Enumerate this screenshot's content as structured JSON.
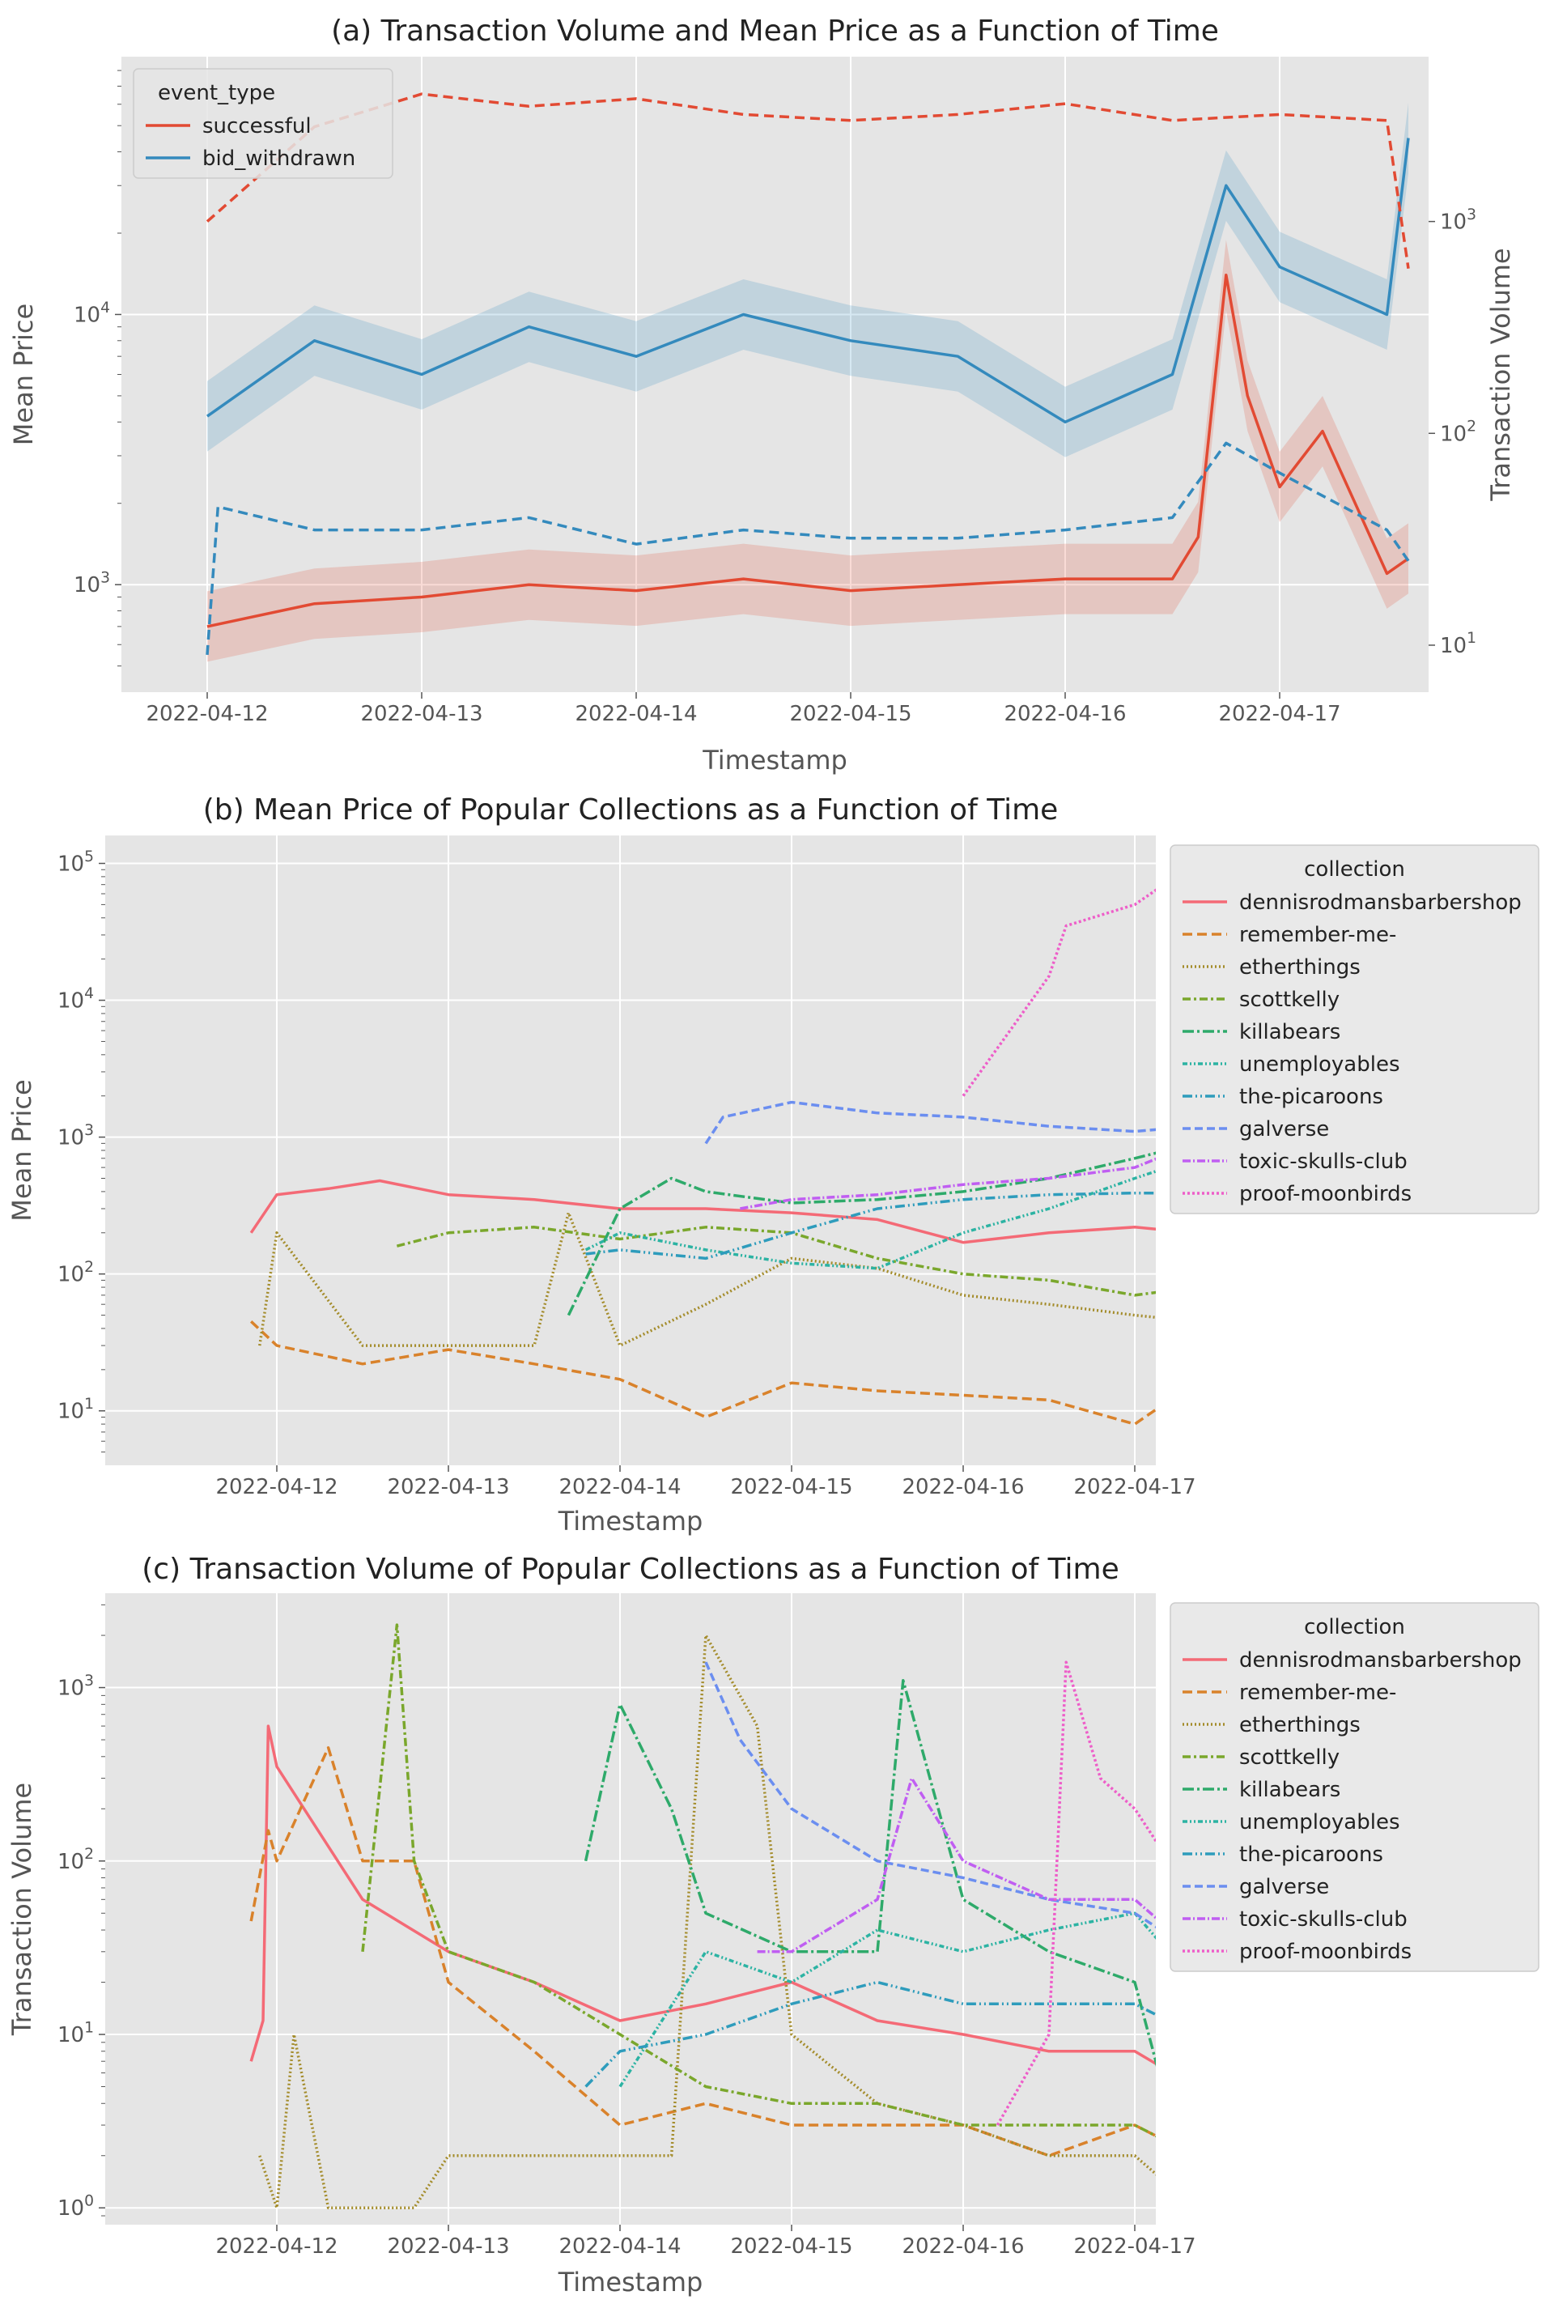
{
  "chart_data": [
    {
      "type": "line",
      "title": "(a) Transaction Volume and Mean Price as a Function of Time",
      "xlabel": "Timestamp",
      "ylabel": "Mean Price",
      "ylabel_right": "Transaction Volume",
      "yscale": "log",
      "ylim": [
        400,
        90000
      ],
      "ylim_right": [
        6,
        6000
      ],
      "y_ticks": [
        "10^3",
        "10^4"
      ],
      "y_right_ticks": [
        "10^1",
        "10^2",
        "10^3"
      ],
      "x_ticks": [
        "2022-04-12",
        "2022-04-13",
        "2022-04-14",
        "2022-04-15",
        "2022-04-16",
        "2022-04-17"
      ],
      "grid": true,
      "legend": {
        "title": "event_type",
        "placement": "upper-left",
        "entries": [
          "successful",
          "bid_withdrawn"
        ]
      },
      "note": "solid lines = Mean Price (left axis) with shaded interval; dashed lines = Transaction Volume (right axis)",
      "series": [
        {
          "name": "successful",
          "color": "#e24a33",
          "axis": "left",
          "style": "solid",
          "x": [
            0,
            0.5,
            1,
            1.5,
            2,
            2.5,
            3,
            3.5,
            4,
            4.5,
            4.62,
            4.75,
            4.85,
            5,
            5.2,
            5.5,
            5.6
          ],
          "y": [
            700,
            850,
            900,
            1000,
            950,
            1050,
            950,
            1000,
            1050,
            1050,
            1500,
            14000,
            5000,
            2300,
            3700,
            1100,
            1250
          ]
        },
        {
          "name": "bid_withdrawn",
          "color": "#348abd",
          "axis": "left",
          "style": "solid",
          "x": [
            0,
            0.5,
            1,
            1.5,
            2,
            2.5,
            3,
            3.5,
            4,
            4.5,
            4.75,
            5,
            5.5,
            5.6
          ],
          "y": [
            4200,
            8000,
            6000,
            9000,
            7000,
            10000,
            8000,
            7000,
            4000,
            6000,
            30000,
            15000,
            10000,
            45000
          ]
        },
        {
          "name": "successful",
          "color": "#e24a33",
          "axis": "right",
          "style": "dashed",
          "x": [
            0,
            0.5,
            1,
            1.5,
            2,
            2.5,
            3,
            3.5,
            4,
            4.5,
            5,
            5.5,
            5.6
          ],
          "y": [
            1000,
            2800,
            4000,
            3500,
            3800,
            3200,
            3000,
            3200,
            3600,
            3000,
            3200,
            3000,
            600
          ]
        },
        {
          "name": "bid_withdrawn",
          "color": "#348abd",
          "axis": "right",
          "style": "dashed",
          "x": [
            0,
            0.05,
            0.5,
            1,
            1.5,
            2,
            2.5,
            3,
            3.5,
            4,
            4.5,
            4.75,
            5,
            5.5,
            5.6
          ],
          "y": [
            9,
            45,
            35,
            35,
            40,
            30,
            35,
            32,
            32,
            35,
            40,
            90,
            65,
            35,
            25
          ]
        }
      ]
    },
    {
      "type": "line",
      "title": "(b) Mean Price of Popular Collections as a Function of Time",
      "xlabel": "Timestamp",
      "ylabel": "Mean Price",
      "yscale": "log",
      "ylim": [
        4,
        160000
      ],
      "y_ticks": [
        "10^1",
        "10^2",
        "10^3",
        "10^4",
        "10^5"
      ],
      "x_ticks": [
        "2022-04-12",
        "2022-04-13",
        "2022-04-14",
        "2022-04-15",
        "2022-04-16",
        "2022-04-17"
      ],
      "grid": true,
      "legend": {
        "title": "collection",
        "placement": "outside-right",
        "entries": [
          "dennisrodmansbarbershop",
          "remember-me-",
          "etherthings",
          "scottkelly",
          "killabears",
          "unemployables",
          "the-picaroons",
          "galverse",
          "toxic-skulls-club",
          "proof-moonbirds"
        ]
      },
      "series": [
        {
          "name": "dennisrodmansbarbershop",
          "color": "#f46a76",
          "dash": "",
          "x": [
            -0.15,
            0,
            0.3,
            0.6,
            1,
            1.5,
            2,
            2.5,
            3,
            3.5,
            4,
            4.5,
            5,
            5.35
          ],
          "y": [
            200,
            380,
            420,
            480,
            380,
            350,
            300,
            300,
            280,
            250,
            170,
            200,
            220,
            200
          ]
        },
        {
          "name": "remember-me-",
          "color": "#d9822b",
          "dash": "12,6",
          "x": [
            -0.15,
            0,
            0.5,
            1,
            1.5,
            2,
            2.5,
            3,
            3.5,
            4,
            4.5,
            5,
            5.35
          ],
          "y": [
            45,
            30,
            22,
            28,
            22,
            17,
            9,
            16,
            14,
            13,
            12,
            8,
            16
          ]
        },
        {
          "name": "etherthings",
          "color": "#a48c2b",
          "dash": "2,3",
          "x": [
            -0.1,
            0,
            0.5,
            1,
            1.5,
            1.7,
            2,
            2.5,
            3,
            3.5,
            4,
            4.5,
            5,
            5.35
          ],
          "y": [
            30,
            200,
            30,
            30,
            30,
            280,
            30,
            60,
            130,
            110,
            70,
            60,
            50,
            45
          ]
        },
        {
          "name": "scottkelly",
          "color": "#7aa72c",
          "dash": "10,4,3,4",
          "x": [
            0.7,
            1,
            1.5,
            2,
            2.5,
            3,
            3.5,
            4,
            4.5,
            5,
            5.35
          ],
          "y": [
            160,
            200,
            220,
            180,
            220,
            200,
            130,
            100,
            90,
            70,
            80
          ]
        },
        {
          "name": "killabears",
          "color": "#2eaa6a",
          "dash": "14,4,3,4",
          "x": [
            1.7,
            2,
            2.3,
            2.5,
            3,
            3.5,
            4,
            4.5,
            5,
            5.35
          ],
          "y": [
            50,
            300,
            500,
            400,
            330,
            350,
            400,
            500,
            700,
            900
          ]
        },
        {
          "name": "unemployables",
          "color": "#2cb3a3",
          "dash": "6,3,2,3,2,3",
          "x": [
            1.8,
            2,
            2.5,
            3,
            3.5,
            4,
            4.5,
            5,
            5.35
          ],
          "y": [
            150,
            200,
            150,
            120,
            110,
            200,
            300,
            500,
            700
          ]
        },
        {
          "name": "the-picaroons",
          "color": "#2e9cbc",
          "dash": "12,4,2,4,2,4",
          "x": [
            1.8,
            2,
            2.5,
            3,
            3.5,
            4,
            4.5,
            5,
            5.35
          ],
          "y": [
            140,
            150,
            130,
            200,
            300,
            350,
            380,
            390,
            390
          ]
        },
        {
          "name": "galverse",
          "color": "#6b8ef0",
          "dash": "10,5",
          "x": [
            2.5,
            2.6,
            3,
            3.5,
            4,
            4.5,
            5,
            5.35
          ],
          "y": [
            900,
            1400,
            1800,
            1500,
            1400,
            1200,
            1100,
            1200
          ]
        },
        {
          "name": "toxic-skulls-club",
          "color": "#c05ef2",
          "dash": "10,3,2,3",
          "x": [
            2.7,
            3,
            3.5,
            4,
            4.5,
            5,
            5.35
          ],
          "y": [
            300,
            350,
            380,
            450,
            500,
            600,
            900
          ]
        },
        {
          "name": "proof-moonbirds",
          "color": "#ee5ec9",
          "dash": "3,3",
          "x": [
            4,
            4.5,
            4.6,
            5,
            5.35
          ],
          "y": [
            2000,
            15000,
            35000,
            50000,
            100000
          ]
        }
      ]
    },
    {
      "type": "line",
      "title": "(c) Transaction Volume of Popular Collections as a Function of Time",
      "xlabel": "Timestamp",
      "ylabel": "Transaction Volume",
      "yscale": "log",
      "ylim": [
        0.8,
        3500
      ],
      "y_ticks": [
        "10^0",
        "10^1",
        "10^2",
        "10^3"
      ],
      "x_ticks": [
        "2022-04-12",
        "2022-04-13",
        "2022-04-14",
        "2022-04-15",
        "2022-04-16",
        "2022-04-17"
      ],
      "grid": true,
      "legend": {
        "title": "collection",
        "placement": "outside-right",
        "entries": [
          "dennisrodmansbarbershop",
          "remember-me-",
          "etherthings",
          "scottkelly",
          "killabears",
          "unemployables",
          "the-picaroons",
          "galverse",
          "toxic-skulls-club",
          "proof-moonbirds"
        ]
      },
      "series": [
        {
          "name": "dennisrodmansbarbershop",
          "color": "#f46a76",
          "dash": "",
          "x": [
            -0.15,
            -0.08,
            -0.05,
            0,
            0.5,
            1,
            1.5,
            2,
            2.5,
            3,
            3.5,
            4,
            4.5,
            5,
            5.35
          ],
          "y": [
            7,
            12,
            600,
            350,
            60,
            30,
            20,
            12,
            15,
            20,
            12,
            10,
            8,
            8,
            5
          ]
        },
        {
          "name": "remember-me-",
          "color": "#d9822b",
          "dash": "12,6",
          "x": [
            -0.15,
            -0.05,
            0,
            0.3,
            0.5,
            0.8,
            1,
            1.5,
            2,
            2.5,
            3,
            3.5,
            4,
            4.5,
            5,
            5.35
          ],
          "y": [
            45,
            150,
            100,
            450,
            100,
            100,
            20,
            8,
            3,
            4,
            3,
            3,
            3,
            2,
            3,
            2
          ]
        },
        {
          "name": "etherthings",
          "color": "#a48c2b",
          "dash": "2,3",
          "x": [
            -0.1,
            0,
            0.1,
            0.3,
            0.8,
            1,
            1.5,
            2,
            2.3,
            2.5,
            2.8,
            3,
            3.5,
            4,
            4.5,
            5,
            5.35
          ],
          "y": [
            2,
            1,
            10,
            1,
            1,
            2,
            2,
            2,
            2,
            2000,
            600,
            10,
            4,
            3,
            2,
            2,
            1
          ]
        },
        {
          "name": "scottkelly",
          "color": "#7aa72c",
          "dash": "10,4,3,4",
          "x": [
            0.5,
            0.7,
            0.8,
            1,
            1.5,
            2,
            2.5,
            3,
            3.5,
            4,
            4.5,
            5,
            5.35
          ],
          "y": [
            30,
            2300,
            100,
            30,
            20,
            10,
            5,
            4,
            4,
            3,
            3,
            3,
            2
          ]
        },
        {
          "name": "killabears",
          "color": "#2eaa6a",
          "dash": "14,4,3,4",
          "x": [
            1.8,
            2,
            2.3,
            2.5,
            3,
            3.5,
            3.65,
            4,
            4.5,
            5,
            5.35
          ],
          "y": [
            100,
            800,
            200,
            50,
            30,
            30,
            1100,
            60,
            30,
            20,
            1
          ]
        },
        {
          "name": "unemployables",
          "color": "#2cb3a3",
          "dash": "6,3,2,3,2,3",
          "x": [
            2,
            2.5,
            3,
            3.5,
            4,
            4.5,
            5,
            5.35
          ],
          "y": [
            5,
            30,
            20,
            40,
            30,
            40,
            50,
            20
          ]
        },
        {
          "name": "the-picaroons",
          "color": "#2e9cbc",
          "dash": "12,4,2,4,2,4",
          "x": [
            1.8,
            2,
            2.5,
            3,
            3.5,
            4,
            4.5,
            5,
            5.35
          ],
          "y": [
            5,
            8,
            10,
            15,
            20,
            15,
            15,
            15,
            10
          ]
        },
        {
          "name": "galverse",
          "color": "#6b8ef0",
          "dash": "10,5",
          "x": [
            2.5,
            2.7,
            3,
            3.5,
            4,
            4.5,
            5,
            5.35
          ],
          "y": [
            1400,
            500,
            200,
            100,
            80,
            60,
            50,
            30
          ]
        },
        {
          "name": "toxic-skulls-club",
          "color": "#c05ef2",
          "dash": "10,3,2,3",
          "x": [
            2.8,
            3,
            3.5,
            3.7,
            4,
            4.5,
            5,
            5.35
          ],
          "y": [
            30,
            30,
            60,
            300,
            100,
            60,
            60,
            30
          ]
        },
        {
          "name": "proof-moonbirds",
          "color": "#ee5ec9",
          "dash": "3,3",
          "x": [
            4.2,
            4.5,
            4.6,
            4.8,
            5,
            5.2,
            5.35
          ],
          "y": [
            3,
            10,
            1400,
            300,
            200,
            100,
            30
          ]
        }
      ]
    }
  ]
}
